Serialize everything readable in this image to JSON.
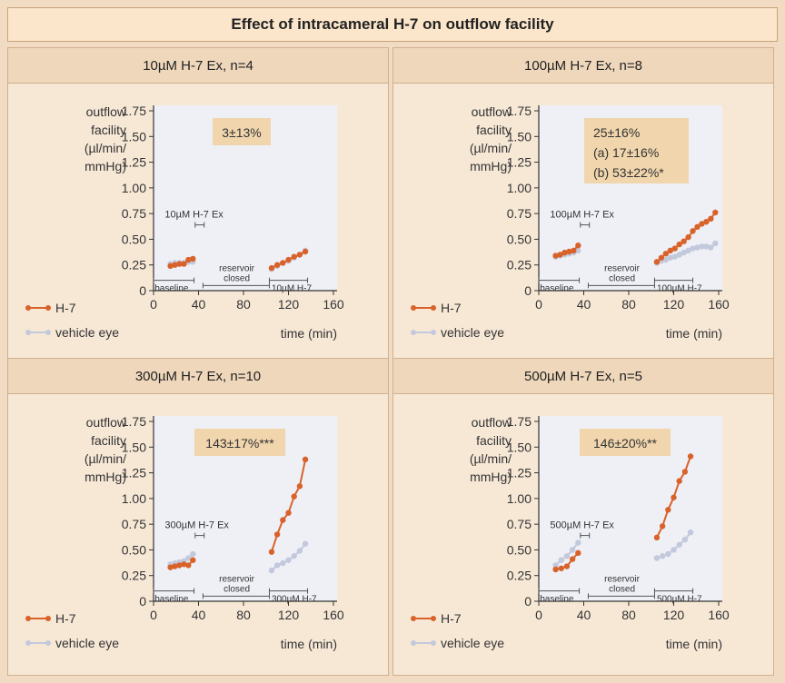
{
  "title": "Effect of intracameral H-7 on outflow facility",
  "colors": {
    "h7": "#d9622b",
    "vehicle": "#c3c9dc",
    "plot_bg": "#eef0f6",
    "stats_box": "#f0d5ad"
  },
  "chart_data": [
    {
      "type": "line",
      "panel_title": "10µM H-7 Ex, n=4",
      "ylabel": [
        "outflow",
        "facility",
        "(µl/min/",
        "mmHg)"
      ],
      "xlabel": "time (min)",
      "ylim": [
        0,
        1.75
      ],
      "yticks": [
        "0",
        "0.25",
        "0.50",
        "0.75",
        "1.00",
        "1.25",
        "1.50",
        "1.75"
      ],
      "xlim": [
        0,
        160
      ],
      "xticks": [
        "0",
        "40",
        "80",
        "120",
        "160"
      ],
      "stats": [
        "3±13%"
      ],
      "annotations": {
        "exchange": "10µM H-7 Ex",
        "baseline": "baseline",
        "reservoir": [
          "reservoir",
          "closed"
        ],
        "treatment": "10µM H-7"
      },
      "legend": [
        "H-7",
        "vehicle eye"
      ],
      "series": [
        {
          "name": "H-7",
          "baseline": {
            "x": [
              15,
              19,
              23,
              27,
              31,
              35
            ],
            "y": [
              0.24,
              0.25,
              0.26,
              0.26,
              0.3,
              0.31
            ]
          },
          "treatment": {
            "x": [
              105,
              110,
              115,
              120,
              125,
              130,
              135
            ],
            "y": [
              0.22,
              0.25,
              0.27,
              0.3,
              0.33,
              0.35,
              0.38
            ]
          }
        },
        {
          "name": "vehicle eye",
          "baseline": {
            "x": [
              15,
              19,
              23,
              27,
              31,
              35
            ],
            "y": [
              0.26,
              0.27,
              0.27,
              0.27,
              0.28,
              0.28
            ]
          },
          "treatment": {
            "x": [
              105,
              110,
              115,
              120,
              125,
              130,
              135
            ],
            "y": [
              0.21,
              0.24,
              0.27,
              0.29,
              0.32,
              0.35,
              0.39
            ]
          }
        }
      ]
    },
    {
      "type": "line",
      "panel_title": "100µM H-7 Ex, n=8",
      "ylabel": [
        "outflow",
        "facility",
        "(µl/min/",
        "mmHg)"
      ],
      "xlabel": "time (min)",
      "ylim": [
        0,
        1.75
      ],
      "yticks": [
        "0",
        "0.25",
        "0.50",
        "0.75",
        "1.00",
        "1.25",
        "1.50",
        "1.75"
      ],
      "xlim": [
        0,
        160
      ],
      "xticks": [
        "0",
        "40",
        "80",
        "120",
        "160"
      ],
      "stats": [
        "25±16%",
        "(a) 17±16%",
        "(b) 53±22%*"
      ],
      "annotations": {
        "exchange": "100µM H-7 Ex",
        "baseline": "baseline",
        "reservoir": [
          "reservoir",
          "closed"
        ],
        "treatment": "100µM H-7"
      },
      "legend": [
        "H-7",
        "vehicle eye"
      ],
      "series": [
        {
          "name": "H-7",
          "baseline": {
            "x": [
              15,
              19,
              23,
              27,
              31,
              35
            ],
            "y": [
              0.34,
              0.35,
              0.37,
              0.38,
              0.39,
              0.44
            ]
          },
          "treatment": {
            "x": [
              105,
              109,
              113,
              117,
              121,
              125,
              129,
              133,
              137,
              141,
              145,
              149,
              153,
              157
            ],
            "y": [
              0.28,
              0.32,
              0.36,
              0.39,
              0.41,
              0.45,
              0.48,
              0.52,
              0.58,
              0.62,
              0.65,
              0.67,
              0.7,
              0.76
            ]
          }
        },
        {
          "name": "vehicle eye",
          "baseline": {
            "x": [
              15,
              19,
              23,
              27,
              31,
              35
            ],
            "y": [
              0.33,
              0.34,
              0.35,
              0.36,
              0.37,
              0.39
            ]
          },
          "treatment": {
            "x": [
              105,
              109,
              113,
              117,
              121,
              125,
              129,
              133,
              137,
              141,
              145,
              149,
              153,
              157
            ],
            "y": [
              0.27,
              0.29,
              0.3,
              0.32,
              0.33,
              0.35,
              0.37,
              0.39,
              0.41,
              0.42,
              0.43,
              0.43,
              0.42,
              0.46
            ]
          }
        }
      ]
    },
    {
      "type": "line",
      "panel_title": "300µM H-7 Ex, n=10",
      "ylabel": [
        "outflow",
        "facility",
        "(µl/min/",
        "mmHg)"
      ],
      "xlabel": "time (min)",
      "ylim": [
        0,
        1.75
      ],
      "yticks": [
        "0",
        "0.25",
        "0.50",
        "0.75",
        "1.00",
        "1.25",
        "1.50",
        "1.75"
      ],
      "xlim": [
        0,
        160
      ],
      "xticks": [
        "0",
        "40",
        "80",
        "120",
        "160"
      ],
      "stats": [
        "143±17%***"
      ],
      "annotations": {
        "exchange": "300µM H-7 Ex",
        "baseline": "baseline",
        "reservoir": [
          "reservoir",
          "closed"
        ],
        "treatment": "300µM H-7"
      },
      "legend": [
        "H-7",
        "vehicle eye"
      ],
      "series": [
        {
          "name": "H-7",
          "baseline": {
            "x": [
              15,
              19,
              23,
              27,
              31,
              35
            ],
            "y": [
              0.33,
              0.34,
              0.35,
              0.36,
              0.35,
              0.4
            ]
          },
          "treatment": {
            "x": [
              105,
              110,
              115,
              120,
              125,
              130,
              135
            ],
            "y": [
              0.48,
              0.65,
              0.79,
              0.86,
              1.02,
              1.12,
              1.38
            ]
          }
        },
        {
          "name": "vehicle eye",
          "baseline": {
            "x": [
              15,
              19,
              23,
              27,
              31,
              35
            ],
            "y": [
              0.36,
              0.37,
              0.38,
              0.39,
              0.42,
              0.46
            ]
          },
          "treatment": {
            "x": [
              105,
              110,
              115,
              120,
              125,
              130,
              135
            ],
            "y": [
              0.3,
              0.35,
              0.37,
              0.4,
              0.44,
              0.49,
              0.56
            ]
          }
        }
      ]
    },
    {
      "type": "line",
      "panel_title": "500µM H-7 Ex, n=5",
      "ylabel": [
        "outflow",
        "facility",
        "(µl/min/",
        "mmHg)"
      ],
      "xlabel": "time (min)",
      "ylim": [
        0,
        1.75
      ],
      "yticks": [
        "0",
        "0.25",
        "0.50",
        "0.75",
        "1.00",
        "1.25",
        "1.50",
        "1.75"
      ],
      "xlim": [
        0,
        160
      ],
      "xticks": [
        "0",
        "40",
        "80",
        "120",
        "160"
      ],
      "stats": [
        "146±20%**"
      ],
      "annotations": {
        "exchange": "500µM H-7 Ex",
        "baseline": "baseline",
        "reservoir": [
          "reservoir",
          "closed"
        ],
        "treatment": "500µM H-7"
      },
      "legend": [
        "H-7",
        "vehicle eye"
      ],
      "series": [
        {
          "name": "H-7",
          "baseline": {
            "x": [
              15,
              20,
              25,
              30,
              35
            ],
            "y": [
              0.31,
              0.32,
              0.34,
              0.41,
              0.47
            ]
          },
          "treatment": {
            "x": [
              105,
              110,
              115,
              120,
              125,
              130,
              135
            ],
            "y": [
              0.62,
              0.73,
              0.89,
              1.01,
              1.17,
              1.26,
              1.41
            ]
          }
        },
        {
          "name": "vehicle eye",
          "baseline": {
            "x": [
              15,
              20,
              25,
              30,
              35
            ],
            "y": [
              0.35,
              0.4,
              0.44,
              0.5,
              0.57
            ]
          },
          "treatment": {
            "x": [
              105,
              110,
              115,
              120,
              125,
              130,
              135
            ],
            "y": [
              0.42,
              0.44,
              0.46,
              0.5,
              0.55,
              0.6,
              0.67
            ]
          }
        }
      ]
    }
  ]
}
